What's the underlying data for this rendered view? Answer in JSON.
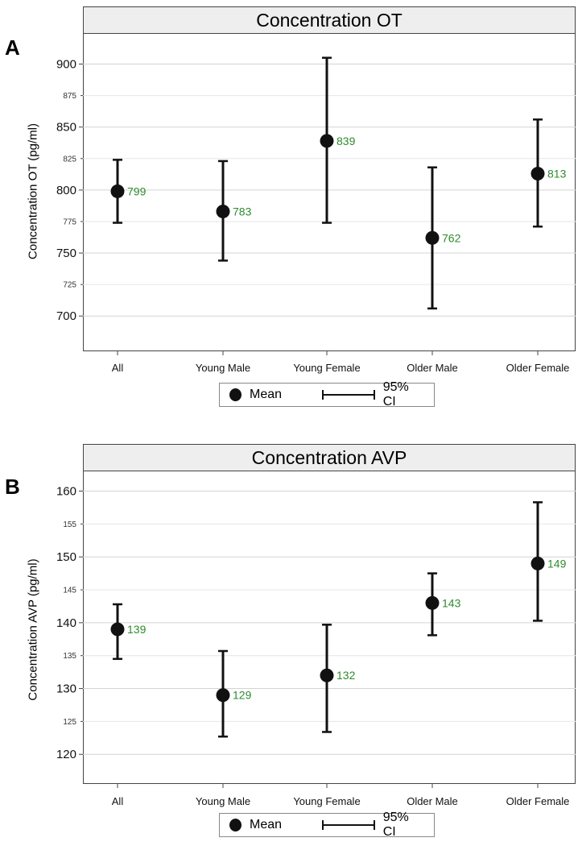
{
  "chart_data": [
    {
      "type": "errorbar",
      "panel_letter": "A",
      "title": "Concentration OT",
      "ylabel": "Concentration OT (pg/ml)",
      "xlabel": "",
      "categories": [
        "All",
        "Young Male",
        "Young Female",
        "Older Male",
        "Older Female"
      ],
      "values": [
        799,
        783,
        839,
        762,
        813
      ],
      "ci_lower": [
        774,
        744,
        774,
        706,
        771
      ],
      "ci_upper": [
        824,
        823,
        905,
        818,
        856
      ],
      "value_labels": [
        "799",
        "783",
        "839",
        "762",
        "813"
      ],
      "ylim": [
        672,
        924
      ],
      "major_ticks": [
        700,
        750,
        800,
        850,
        900
      ],
      "minor_ticks": [
        725,
        775,
        825,
        875
      ],
      "grid": true,
      "legend": {
        "mean_label": "Mean",
        "ci_label": "95% CI",
        "placement": "bottom-center"
      },
      "colors": {
        "value_label": "#2e8b2e",
        "mark": "#111111",
        "title_bg": "#eeeeee"
      }
    },
    {
      "type": "errorbar",
      "panel_letter": "B",
      "title": "Concentration AVP",
      "ylabel": "Concentration AVP (pg/ml)",
      "xlabel": "",
      "categories": [
        "All",
        "Young Male",
        "Young Female",
        "Older Male",
        "Older Female"
      ],
      "values": [
        139,
        129,
        132,
        143,
        149
      ],
      "ci_lower": [
        134.5,
        122.7,
        123.4,
        138.1,
        140.3
      ],
      "ci_upper": [
        142.8,
        135.7,
        139.7,
        147.5,
        158.3
      ],
      "value_labels": [
        "139",
        "129",
        "132",
        "143",
        "149"
      ],
      "ylim": [
        115.5,
        163
      ],
      "major_ticks": [
        120,
        130,
        140,
        150,
        160
      ],
      "minor_ticks": [
        125,
        135,
        145,
        155
      ],
      "grid": true,
      "legend": {
        "mean_label": "Mean",
        "ci_label": "95% CI",
        "placement": "bottom-center"
      },
      "colors": {
        "value_label": "#2e8b2e",
        "mark": "#111111",
        "title_bg": "#eeeeee"
      }
    }
  ]
}
